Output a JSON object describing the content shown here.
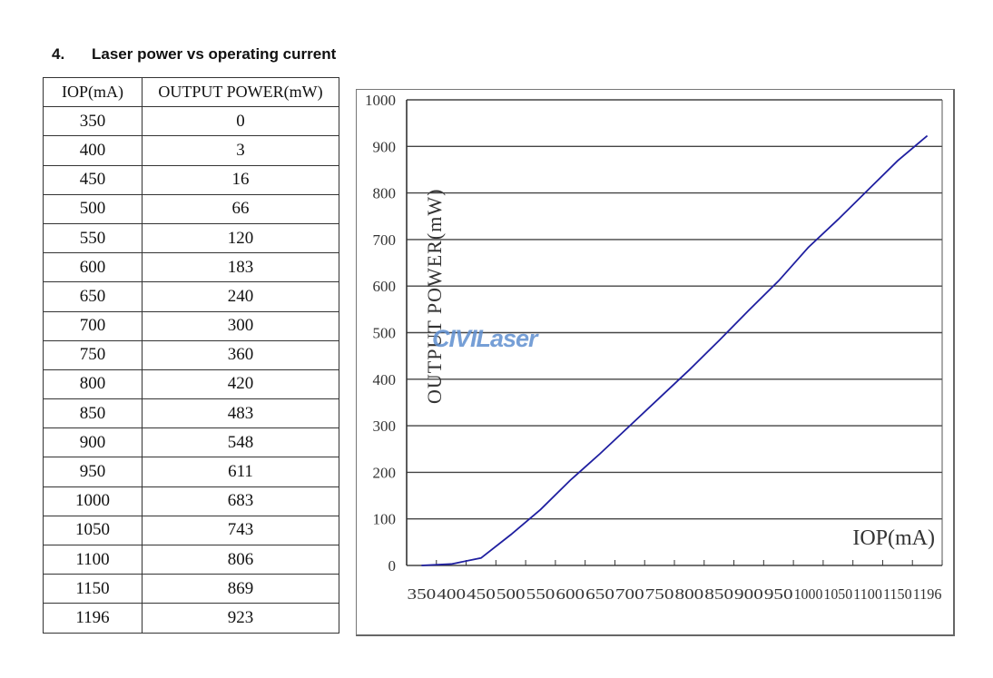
{
  "heading": {
    "number": "4.",
    "text": "Laser power vs operating current"
  },
  "table": {
    "headers": [
      "IOP(mA)",
      "OUTPUT  POWER(mW)"
    ],
    "rows": [
      [
        "350",
        "0"
      ],
      [
        "400",
        "3"
      ],
      [
        "450",
        "16"
      ],
      [
        "500",
        "66"
      ],
      [
        "550",
        "120"
      ],
      [
        "600",
        "183"
      ],
      [
        "650",
        "240"
      ],
      [
        "700",
        "300"
      ],
      [
        "750",
        "360"
      ],
      [
        "800",
        "420"
      ],
      [
        "850",
        "483"
      ],
      [
        "900",
        "548"
      ],
      [
        "950",
        "611"
      ],
      [
        "1000",
        "683"
      ],
      [
        "1050",
        "743"
      ],
      [
        "1100",
        "806"
      ],
      [
        "1150",
        "869"
      ],
      [
        "1196",
        "923"
      ]
    ]
  },
  "watermark": "CIVILaser",
  "chart_data": {
    "type": "line",
    "title": "",
    "xlabel": "IOP(mA)",
    "ylabel": "OUTPUT  POWER(mW)",
    "categories": [
      "350",
      "400",
      "450",
      "500",
      "550",
      "600",
      "650",
      "700",
      "750",
      "800",
      "850",
      "900",
      "950",
      "1000",
      "1050",
      "1100",
      "1150",
      "1196"
    ],
    "x": [
      350,
      400,
      450,
      500,
      550,
      600,
      650,
      700,
      750,
      800,
      850,
      900,
      950,
      1000,
      1050,
      1100,
      1150,
      1196
    ],
    "series": [
      {
        "name": "Output Power",
        "values": [
          0,
          3,
          16,
          66,
          120,
          183,
          240,
          300,
          360,
          420,
          483,
          548,
          611,
          683,
          743,
          806,
          869,
          923
        ],
        "color": "#1f1fa0"
      }
    ],
    "ylim": [
      0,
      1000
    ],
    "yticks": [
      0,
      100,
      200,
      300,
      400,
      500,
      600,
      700,
      800,
      900,
      1000
    ],
    "grid": true,
    "legend": "none"
  }
}
